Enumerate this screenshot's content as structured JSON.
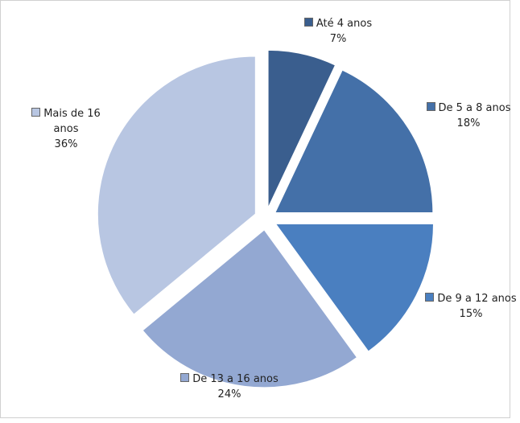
{
  "chart_data": {
    "type": "pie",
    "categories": [
      "Até 4 anos",
      "De 5 a 8 anos",
      "De 9 a 12 anos",
      "De 13 a 16 anos",
      "Mais de 16 anos"
    ],
    "values": [
      7,
      18,
      15,
      24,
      36
    ],
    "value_labels": [
      "7%",
      "18%",
      "15%",
      "24%",
      "36%"
    ],
    "colors": [
      "#3a5e8e",
      "#4470a8",
      "#4a7fc0",
      "#93a8d2",
      "#b8c6e2"
    ]
  }
}
